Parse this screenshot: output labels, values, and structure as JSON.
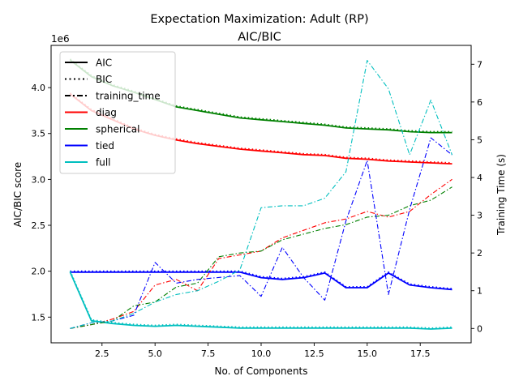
{
  "chart_data": {
    "type": "line",
    "title": "Expectation Maximization: Adult (RP)",
    "subtitle": "AIC/BIC",
    "xlabel": "No. of Components",
    "ylabel": "AIC/BIC score",
    "y2label": "Training Time (s)",
    "y_offset_label": "1e6",
    "xlim": [
      0.1,
      19.9
    ],
    "ylim": [
      1.22,
      4.46
    ],
    "y2lim": [
      -0.38,
      7.5
    ],
    "x_ticks": [
      2.5,
      5.0,
      7.5,
      10.0,
      12.5,
      15.0,
      17.5
    ],
    "x_tick_labels": [
      "2.5",
      "5.0",
      "7.5",
      "10.0",
      "12.5",
      "15.0",
      "17.5"
    ],
    "y_ticks": [
      1.5,
      2.0,
      2.5,
      3.0,
      3.5,
      4.0
    ],
    "y_tick_labels": [
      "1.5",
      "2.0",
      "2.5",
      "3.0",
      "3.5",
      "4.0"
    ],
    "y2_ticks": [
      0,
      1,
      2,
      3,
      4,
      5,
      6,
      7
    ],
    "y2_tick_labels": [
      "0",
      "1",
      "2",
      "3",
      "4",
      "5",
      "6",
      "7"
    ],
    "grid": false,
    "legend_position": "top-left",
    "legend": [
      {
        "label": "AIC",
        "color": "#000000",
        "style": "solid"
      },
      {
        "label": "BIC",
        "color": "#000000",
        "style": "dotted"
      },
      {
        "label": "training_time",
        "color": "#000000",
        "style": "dashdot"
      },
      {
        "label": "diag",
        "color": "#ff0000",
        "style": "solid"
      },
      {
        "label": "spherical",
        "color": "#008000",
        "style": "solid"
      },
      {
        "label": "tied",
        "color": "#0000ff",
        "style": "solid"
      },
      {
        "label": "full",
        "color": "#00bfbf",
        "style": "solid"
      }
    ],
    "x": [
      1,
      2,
      3,
      4,
      5,
      6,
      7,
      8,
      9,
      10,
      11,
      12,
      13,
      14,
      15,
      16,
      17,
      18,
      19
    ],
    "series": [
      {
        "name": "diag",
        "metric": "AIC",
        "axis": "left",
        "color": "#ff0000",
        "style": "solid",
        "values": [
          3.93,
          3.75,
          3.65,
          3.55,
          3.48,
          3.43,
          3.39,
          3.36,
          3.33,
          3.31,
          3.29,
          3.27,
          3.26,
          3.23,
          3.22,
          3.2,
          3.19,
          3.18,
          3.17
        ]
      },
      {
        "name": "diag",
        "metric": "BIC",
        "axis": "left",
        "color": "#ff0000",
        "style": "dotted",
        "values": [
          3.94,
          3.76,
          3.66,
          3.56,
          3.49,
          3.44,
          3.4,
          3.37,
          3.34,
          3.32,
          3.3,
          3.28,
          3.27,
          3.24,
          3.23,
          3.21,
          3.2,
          3.19,
          3.18
        ]
      },
      {
        "name": "spherical",
        "metric": "AIC",
        "axis": "left",
        "color": "#008000",
        "style": "solid",
        "values": [
          4.3,
          4.12,
          4.02,
          3.95,
          3.87,
          3.79,
          3.75,
          3.71,
          3.67,
          3.65,
          3.63,
          3.61,
          3.59,
          3.56,
          3.55,
          3.54,
          3.52,
          3.51,
          3.51
        ]
      },
      {
        "name": "spherical",
        "metric": "BIC",
        "axis": "left",
        "color": "#008000",
        "style": "dotted",
        "values": [
          4.31,
          4.13,
          4.03,
          3.96,
          3.88,
          3.8,
          3.76,
          3.72,
          3.68,
          3.66,
          3.64,
          3.62,
          3.6,
          3.57,
          3.56,
          3.55,
          3.53,
          3.52,
          3.52
        ]
      },
      {
        "name": "tied",
        "metric": "AIC",
        "axis": "left",
        "color": "#0000ff",
        "style": "solid",
        "values": [
          1.99,
          1.99,
          1.99,
          1.99,
          1.99,
          1.99,
          1.99,
          1.99,
          1.99,
          1.93,
          1.91,
          1.93,
          1.98,
          1.82,
          1.82,
          1.98,
          1.85,
          1.82,
          1.8
        ]
      },
      {
        "name": "tied",
        "metric": "BIC",
        "axis": "left",
        "color": "#0000ff",
        "style": "dotted",
        "values": [
          2.0,
          2.0,
          2.0,
          2.0,
          2.0,
          2.0,
          2.0,
          2.0,
          2.0,
          1.94,
          1.92,
          1.94,
          1.99,
          1.83,
          1.83,
          1.99,
          1.86,
          1.83,
          1.81
        ]
      },
      {
        "name": "full",
        "metric": "AIC",
        "axis": "left",
        "color": "#00bfbf",
        "style": "solid",
        "values": [
          1.99,
          1.46,
          1.43,
          1.41,
          1.4,
          1.41,
          1.4,
          1.39,
          1.38,
          1.38,
          1.38,
          1.38,
          1.38,
          1.38,
          1.38,
          1.38,
          1.38,
          1.37,
          1.38
        ]
      },
      {
        "name": "full",
        "metric": "BIC",
        "axis": "left",
        "color": "#00bfbf",
        "style": "dotted",
        "values": [
          2.0,
          1.47,
          1.44,
          1.42,
          1.41,
          1.42,
          1.41,
          1.4,
          1.39,
          1.39,
          1.39,
          1.39,
          1.39,
          1.39,
          1.39,
          1.39,
          1.39,
          1.38,
          1.39
        ]
      },
      {
        "name": "diag",
        "metric": "training_time",
        "axis": "right",
        "color": "#ff0000",
        "style": "dashdot",
        "values": [
          0.0,
          0.1,
          0.25,
          0.45,
          1.15,
          1.3,
          1.0,
          1.85,
          1.95,
          2.05,
          2.4,
          2.6,
          2.8,
          2.9,
          3.1,
          2.95,
          3.1,
          3.55,
          3.95
        ]
      },
      {
        "name": "spherical",
        "metric": "training_time",
        "axis": "right",
        "color": "#008000",
        "style": "dashdot",
        "values": [
          0.0,
          0.1,
          0.2,
          0.6,
          0.7,
          1.1,
          1.2,
          1.9,
          2.0,
          2.05,
          2.35,
          2.5,
          2.65,
          2.75,
          2.95,
          3.0,
          3.25,
          3.4,
          3.75
        ]
      },
      {
        "name": "tied",
        "metric": "training_time",
        "axis": "right",
        "color": "#0000ff",
        "style": "dashdot",
        "values": [
          0.0,
          0.15,
          0.2,
          0.35,
          1.75,
          1.2,
          1.3,
          1.35,
          1.4,
          0.85,
          2.15,
          1.35,
          0.75,
          2.85,
          4.45,
          0.9,
          3.15,
          5.05,
          4.6
        ]
      },
      {
        "name": "full",
        "metric": "training_time",
        "axis": "right",
        "color": "#00bfbf",
        "style": "dashdot",
        "values": [
          0.0,
          0.15,
          0.2,
          0.4,
          0.7,
          0.9,
          1.0,
          1.25,
          1.55,
          3.2,
          3.25,
          3.25,
          3.45,
          4.15,
          7.1,
          6.35,
          4.6,
          6.05,
          4.6
        ]
      }
    ]
  }
}
